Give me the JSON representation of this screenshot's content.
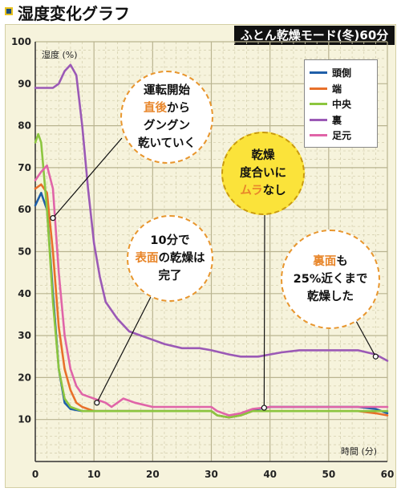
{
  "title": "湿度変化グラフ",
  "subtitle": "ふとん乾燥モード(冬)60分",
  "colors": {
    "頭側": "#1f5fa8",
    "端": "#e8702a",
    "中央": "#8cc63f",
    "裏": "#9b59b6",
    "足元": "#e064a8"
  },
  "chart_data": {
    "type": "line",
    "ylabel": "湿度 (%)",
    "xlabel": "時間 (分)",
    "xlim": [
      0,
      60
    ],
    "ylim": [
      0,
      100
    ],
    "x_ticks": [
      0,
      10,
      20,
      30,
      40,
      50,
      60
    ],
    "y_ticks": [
      10,
      20,
      30,
      40,
      50,
      60,
      70,
      80,
      90,
      100
    ],
    "grid": true,
    "legend_position": "top-right",
    "series": [
      {
        "name": "頭側",
        "points": [
          [
            0,
            61
          ],
          [
            1,
            64
          ],
          [
            2,
            60
          ],
          [
            3,
            40
          ],
          [
            4,
            22
          ],
          [
            5,
            14
          ],
          [
            6,
            12.5
          ],
          [
            8,
            12
          ],
          [
            10,
            12
          ],
          [
            15,
            12
          ],
          [
            20,
            12
          ],
          [
            25,
            12
          ],
          [
            30,
            12
          ],
          [
            31,
            11
          ],
          [
            33,
            10.5
          ],
          [
            35,
            11
          ],
          [
            37,
            12
          ],
          [
            38,
            12.5
          ],
          [
            40,
            13
          ],
          [
            45,
            13
          ],
          [
            50,
            13
          ],
          [
            55,
            13
          ],
          [
            58,
            12.5
          ],
          [
            60,
            11.5
          ]
        ]
      },
      {
        "name": "端",
        "points": [
          [
            0,
            65
          ],
          [
            1,
            66
          ],
          [
            2,
            64
          ],
          [
            3,
            50
          ],
          [
            4,
            32
          ],
          [
            5,
            22
          ],
          [
            6,
            17
          ],
          [
            7,
            14
          ],
          [
            8,
            13
          ],
          [
            10,
            12
          ],
          [
            15,
            12
          ],
          [
            20,
            12
          ],
          [
            25,
            12
          ],
          [
            30,
            12
          ],
          [
            31,
            11
          ],
          [
            33,
            10.5
          ],
          [
            35,
            11
          ],
          [
            37,
            12
          ],
          [
            38,
            12
          ],
          [
            40,
            12
          ],
          [
            45,
            12
          ],
          [
            50,
            12
          ],
          [
            55,
            12
          ],
          [
            58,
            11.5
          ],
          [
            60,
            11
          ]
        ]
      },
      {
        "name": "中央",
        "points": [
          [
            0,
            76
          ],
          [
            0.5,
            78
          ],
          [
            1,
            76
          ],
          [
            2,
            60
          ],
          [
            3,
            38
          ],
          [
            4,
            22
          ],
          [
            5,
            15
          ],
          [
            6,
            13
          ],
          [
            8,
            12
          ],
          [
            10,
            12
          ],
          [
            15,
            12
          ],
          [
            20,
            12
          ],
          [
            25,
            12
          ],
          [
            30,
            12
          ],
          [
            31,
            11
          ],
          [
            33,
            10.5
          ],
          [
            35,
            11
          ],
          [
            37,
            12
          ],
          [
            40,
            12
          ],
          [
            45,
            12
          ],
          [
            50,
            12
          ],
          [
            55,
            12
          ],
          [
            60,
            12
          ]
        ]
      },
      {
        "name": "裏",
        "points": [
          [
            0,
            89
          ],
          [
            3,
            89
          ],
          [
            4,
            90
          ],
          [
            5,
            93
          ],
          [
            6,
            94.5
          ],
          [
            7,
            92
          ],
          [
            8,
            80
          ],
          [
            9,
            65
          ],
          [
            10,
            52
          ],
          [
            11,
            44
          ],
          [
            12,
            38
          ],
          [
            14,
            34
          ],
          [
            16,
            31
          ],
          [
            18,
            30
          ],
          [
            20,
            29
          ],
          [
            22,
            28
          ],
          [
            25,
            27
          ],
          [
            28,
            27
          ],
          [
            30,
            26.5
          ],
          [
            33,
            25.5
          ],
          [
            35,
            25
          ],
          [
            38,
            25
          ],
          [
            40,
            25.5
          ],
          [
            42,
            26
          ],
          [
            45,
            26.5
          ],
          [
            50,
            26.5
          ],
          [
            55,
            26.5
          ],
          [
            58,
            25.5
          ],
          [
            60,
            24
          ]
        ]
      },
      {
        "name": "足元",
        "points": [
          [
            0,
            67
          ],
          [
            1,
            69
          ],
          [
            2,
            70.5
          ],
          [
            3,
            65
          ],
          [
            4,
            45
          ],
          [
            5,
            30
          ],
          [
            6,
            22
          ],
          [
            7,
            18
          ],
          [
            8,
            16
          ],
          [
            10,
            15
          ],
          [
            12,
            14
          ],
          [
            13,
            13
          ],
          [
            14,
            14
          ],
          [
            15,
            15
          ],
          [
            17,
            14
          ],
          [
            20,
            13
          ],
          [
            25,
            13
          ],
          [
            30,
            13
          ],
          [
            31,
            12
          ],
          [
            33,
            11
          ],
          [
            35,
            11.5
          ],
          [
            37,
            12.5
          ],
          [
            40,
            13
          ],
          [
            45,
            13
          ],
          [
            50,
            13
          ],
          [
            55,
            13
          ],
          [
            60,
            13
          ]
        ]
      }
    ]
  },
  "legend": {
    "items": [
      "頭側",
      "端",
      "中央",
      "裏",
      "足元"
    ]
  },
  "callouts": {
    "c1": {
      "l1": "運転開始",
      "l2a": "直後",
      "l2b": "から",
      "l3": "グングン",
      "l4": "乾いていく"
    },
    "c2": {
      "l1": "乾燥",
      "l2": "度合いに",
      "l3a": "ムラ",
      "l3b": "なし"
    },
    "c3": {
      "l1": "10分で",
      "l2a": "表面",
      "l2b": "の乾燥は",
      "l3": "完了"
    },
    "c4": {
      "l1a": "裏面",
      "l1b": "も",
      "l2": "25%近くまで",
      "l3": "乾燥した"
    }
  }
}
